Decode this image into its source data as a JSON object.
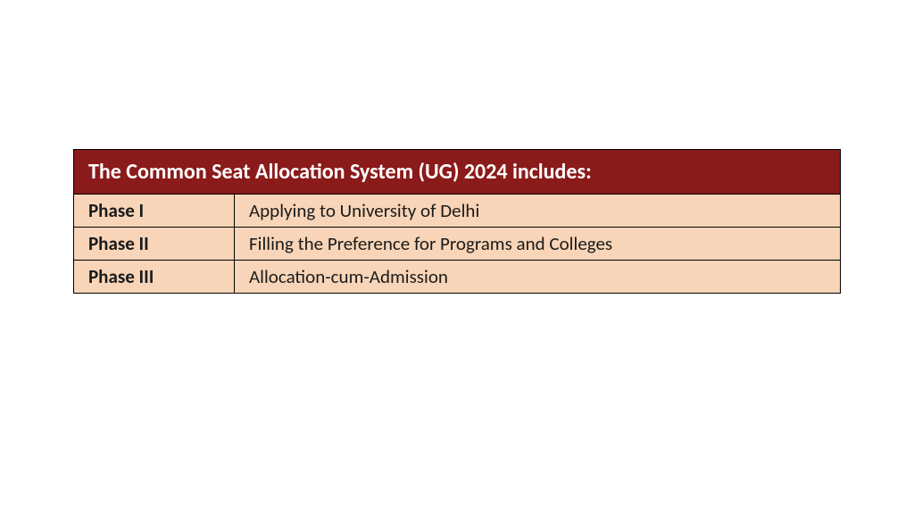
{
  "table": {
    "title": "The Common Seat Allocation System (UG) 2024 includes:",
    "header_bg_color": "#8b1a1a",
    "header_text_color": "#ffffff",
    "header_fontsize": 24,
    "row_bg_color": "#f8d5b8",
    "row_text_color": "#1a1a1a",
    "row_fontsize": 21,
    "border_color": "#000000",
    "rows": [
      {
        "phase": "Phase I",
        "description": "Applying to University of Delhi"
      },
      {
        "phase": "Phase II",
        "description": "Filling the Preference for Programs and Colleges"
      },
      {
        "phase": "Phase III",
        "description": "Allocation-cum-Admission"
      }
    ]
  }
}
